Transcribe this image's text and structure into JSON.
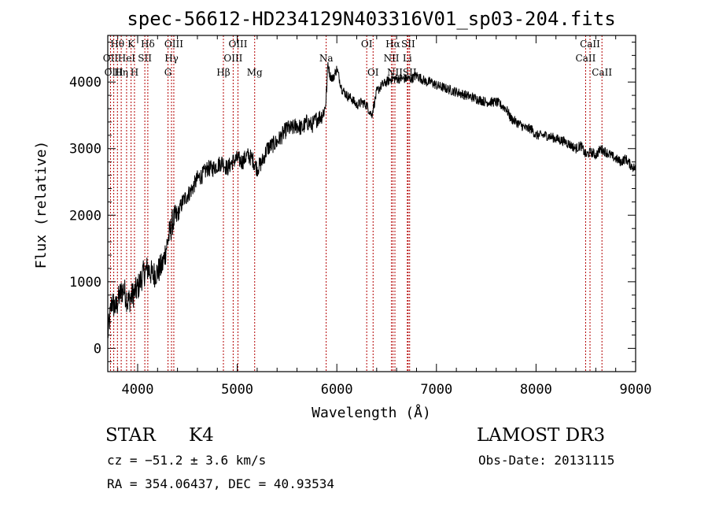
{
  "chart_data": {
    "type": "line",
    "title": "spec-56612-HD234129N403316V01_sp03-204.fits",
    "xlabel": "Wavelength (Å)",
    "ylabel": "Flux (relative)",
    "xlim": [
      3700,
      9000
    ],
    "ylim": [
      -350,
      4700
    ],
    "x_ticks": [
      4000,
      5000,
      6000,
      7000,
      8000,
      9000
    ],
    "y_ticks": [
      0,
      1000,
      2000,
      3000,
      4000
    ],
    "grid": false,
    "series": [
      {
        "x": [
          3700,
          3740,
          3780,
          3820,
          3860,
          3900,
          3950,
          4000,
          4050,
          4100,
          4150,
          4200,
          4250,
          4300,
          4350,
          4400,
          4450,
          4500,
          4550,
          4600,
          4650,
          4700,
          4750,
          4800,
          4850,
          4900,
          4950,
          5000,
          5050,
          5100,
          5150,
          5200,
          5250,
          5300,
          5350,
          5400,
          5450,
          5500,
          5550,
          5600,
          5650,
          5700,
          5750,
          5800,
          5850,
          5880,
          5895,
          5910,
          5930,
          5960,
          6000,
          6050,
          6100,
          6150,
          6200,
          6250,
          6300,
          6350,
          6400,
          6450,
          6500,
          6550,
          6600,
          6650,
          6700,
          6750,
          6800,
          6850,
          6900,
          6950,
          7000,
          7100,
          7200,
          7300,
          7400,
          7500,
          7600,
          7700,
          7750,
          7800,
          7850,
          7900,
          7950,
          8000,
          8100,
          8200,
          8300,
          8400,
          8450,
          8500,
          8550,
          8600,
          8650,
          8700,
          8750,
          8800,
          8850,
          8900,
          8950,
          9000
        ],
        "y": [
          200,
          700,
          600,
          800,
          900,
          700,
          800,
          900,
          1100,
          1200,
          1100,
          1150,
          1250,
          1600,
          1900,
          2000,
          2200,
          2300,
          2400,
          2550,
          2600,
          2700,
          2700,
          2750,
          2800,
          2700,
          2800,
          2850,
          2800,
          2900,
          2850,
          2700,
          2800,
          3000,
          3050,
          3100,
          3200,
          3300,
          3300,
          3350,
          3300,
          3400,
          3350,
          3450,
          3500,
          3600,
          3800,
          4300,
          4100,
          4050,
          4200,
          3900,
          3800,
          3750,
          3650,
          3700,
          3650,
          3500,
          3850,
          3950,
          4000,
          4050,
          4050,
          4050,
          4050,
          4050,
          4100,
          4050,
          4000,
          4000,
          3950,
          3900,
          3850,
          3800,
          3750,
          3700,
          3700,
          3600,
          3450,
          3400,
          3350,
          3300,
          3300,
          3200,
          3200,
          3150,
          3100,
          3000,
          3050,
          2900,
          2950,
          2900,
          3000,
          2950,
          2900,
          2850,
          2800,
          2850,
          2750,
          2700
        ]
      }
    ],
    "lines": [
      {
        "label": "Hθ",
        "wl": 3797,
        "row": 1
      },
      {
        "label": "OII",
        "wl": 3727,
        "row": 2
      },
      {
        "label": "OIII",
        "wl": 3760,
        "row": 3
      },
      {
        "label": "K",
        "wl": 3934,
        "row": 1
      },
      {
        "label": "HeI",
        "wl": 3889,
        "row": 2
      },
      {
        "label": "Hη",
        "wl": 3835,
        "row": 3
      },
      {
        "label": "H",
        "wl": 3968,
        "row": 3
      },
      {
        "label": "Hδ",
        "wl": 4102,
        "row": 1
      },
      {
        "label": "SII",
        "wl": 4072,
        "row": 2
      },
      {
        "label": "OIII",
        "wl": 4363,
        "row": 1
      },
      {
        "label": "Hγ",
        "wl": 4340,
        "row": 2
      },
      {
        "label": "G",
        "wl": 4305,
        "row": 3
      },
      {
        "label": "Hβ",
        "wl": 4861,
        "row": 3
      },
      {
        "label": "OIII",
        "wl": 5007,
        "row": 1
      },
      {
        "label": "OIII",
        "wl": 4959,
        "row": 2
      },
      {
        "label": "Mg",
        "wl": 5175,
        "row": 3
      },
      {
        "label": "Na",
        "wl": 5893,
        "row": 2
      },
      {
        "label": "OI",
        "wl": 6300,
        "row": 1
      },
      {
        "label": "OI",
        "wl": 6364,
        "row": 3
      },
      {
        "label": "Hα",
        "wl": 6563,
        "row": 1
      },
      {
        "label": "SII",
        "wl": 6716,
        "row": 1
      },
      {
        "label": "NII",
        "wl": 6548,
        "row": 2
      },
      {
        "label": "Li",
        "wl": 6708,
        "row": 2
      },
      {
        "label": "NII",
        "wl": 6583,
        "row": 3
      },
      {
        "label": "SII",
        "wl": 6731,
        "row": 3
      },
      {
        "label": "CaII",
        "wl": 8542,
        "row": 1
      },
      {
        "label": "CaII",
        "wl": 8498,
        "row": 2
      },
      {
        "label": "CaII",
        "wl": 8662,
        "row": 3
      }
    ]
  },
  "info": {
    "object_class": "STAR",
    "subclass": "K4",
    "cz": "cz = −51.2 ± 3.6 km/s",
    "coords": "RA = 354.06437, DEC =  40.93534",
    "survey": "LAMOST DR3",
    "obs_date": "Obs-Date: 20131115"
  }
}
